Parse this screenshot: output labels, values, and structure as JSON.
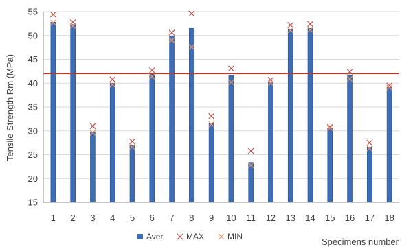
{
  "chart_data": {
    "type": "bar",
    "title": "",
    "xlabel": "Specimens number",
    "ylabel": "Tensile Strength Rm (MPa)",
    "ylim": [
      15,
      55
    ],
    "yticks": [
      15,
      20,
      25,
      30,
      35,
      40,
      45,
      50,
      55
    ],
    "grid": true,
    "legend_position": "bottom",
    "reference_line": {
      "value": 42,
      "color": "#c0392b"
    },
    "categories": [
      "1",
      "2",
      "3",
      "4",
      "5",
      "6",
      "7",
      "8",
      "9",
      "10",
      "11",
      "12",
      "13",
      "14",
      "15",
      "16",
      "17",
      "18"
    ],
    "series": [
      {
        "name": "Aver.",
        "kind": "bar",
        "color": "#3d6db5",
        "values": [
          52.8,
          52.3,
          29.8,
          40.0,
          26.9,
          41.9,
          49.9,
          51.5,
          31.5,
          41.6,
          23.4,
          40.1,
          51.3,
          51.5,
          30.6,
          41.6,
          26.6,
          39.2
        ]
      },
      {
        "name": "MAX",
        "kind": "marker",
        "marker": "x",
        "color": "#c0504d",
        "values": [
          54.4,
          52.8,
          31.0,
          40.8,
          27.8,
          42.7,
          50.6,
          54.6,
          33.1,
          43.1,
          25.8,
          40.7,
          52.2,
          52.4,
          30.8,
          42.4,
          27.5,
          39.5
        ]
      },
      {
        "name": "MIN",
        "kind": "marker",
        "marker": "x",
        "color": "#e8956a",
        "values": [
          52.7,
          52.0,
          29.6,
          39.7,
          26.6,
          41.4,
          49.0,
          47.6,
          31.4,
          40.2,
          22.8,
          40.0,
          51.1,
          51.2,
          30.6,
          40.9,
          26.3,
          39.1
        ]
      }
    ]
  }
}
